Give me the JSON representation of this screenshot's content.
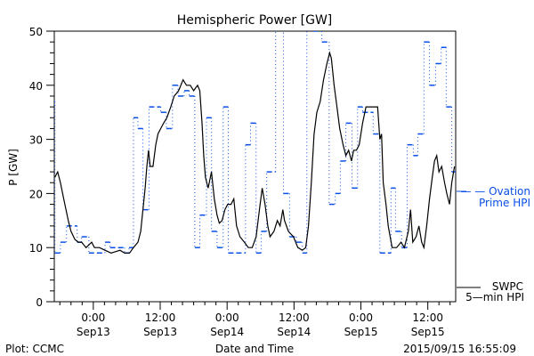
{
  "chart_data": {
    "type": "line",
    "title": "Hemispheric Power [GW]",
    "xlabel": "Date and Time",
    "ylabel": "P [GW]",
    "x_units": "hours since 2015-09-13 00:00 UT",
    "xlim": [
      -7,
      65
    ],
    "ylim": [
      0,
      50
    ],
    "yticks": [
      0,
      10,
      20,
      30,
      40,
      50
    ],
    "xticks": [
      {
        "h": 0,
        "time": "0:00",
        "date": "Sep13"
      },
      {
        "h": 12,
        "time": "12:00",
        "date": "Sep13"
      },
      {
        "h": 24,
        "time": "0:00",
        "date": "Sep14"
      },
      {
        "h": 36,
        "time": "12:00",
        "date": "Sep14"
      },
      {
        "h": 48,
        "time": "0:00",
        "date": "Sep15"
      },
      {
        "h": 60,
        "time": "12:00",
        "date": "Sep15"
      }
    ],
    "grid": false,
    "legend_placement": "right-outside",
    "series": [
      {
        "name": "SWPC 5-min HPI",
        "label_lines": [
          "SWPC",
          "5—min HPI"
        ],
        "color": "#000000",
        "style": "solid",
        "points": [
          [
            -6.9,
            23
          ],
          [
            -6.4,
            24
          ],
          [
            -5.9,
            22
          ],
          [
            -5.3,
            19
          ],
          [
            -4.5,
            15
          ],
          [
            -4.0,
            13
          ],
          [
            -3.3,
            11.5
          ],
          [
            -2.7,
            11
          ],
          [
            -2.1,
            11
          ],
          [
            -1.3,
            10
          ],
          [
            -0.3,
            11
          ],
          [
            0.2,
            10
          ],
          [
            1.1,
            10
          ],
          [
            2.1,
            9.5
          ],
          [
            3.2,
            9
          ],
          [
            4.8,
            9.5
          ],
          [
            5.6,
            9
          ],
          [
            6.5,
            9
          ],
          [
            7.2,
            10
          ],
          [
            8.0,
            11
          ],
          [
            8.5,
            13
          ],
          [
            8.9,
            17
          ],
          [
            9.3,
            21
          ],
          [
            9.6,
            25
          ],
          [
            9.9,
            28
          ],
          [
            10.2,
            25
          ],
          [
            10.7,
            25
          ],
          [
            11.2,
            29
          ],
          [
            11.6,
            31
          ],
          [
            12.1,
            32
          ],
          [
            12.6,
            33
          ],
          [
            13.2,
            34
          ],
          [
            13.9,
            36
          ],
          [
            14.5,
            38
          ],
          [
            15.3,
            39
          ],
          [
            16.1,
            41
          ],
          [
            16.7,
            40
          ],
          [
            17.4,
            40
          ],
          [
            18.0,
            39
          ],
          [
            18.7,
            40
          ],
          [
            19.1,
            39
          ],
          [
            19.5,
            33
          ],
          [
            19.8,
            27
          ],
          [
            20.1,
            23
          ],
          [
            20.6,
            21
          ],
          [
            21.2,
            24
          ],
          [
            21.7,
            19
          ],
          [
            22.2,
            16
          ],
          [
            22.6,
            14.5
          ],
          [
            23.1,
            15
          ],
          [
            23.6,
            17
          ],
          [
            24.1,
            18
          ],
          [
            24.7,
            18
          ],
          [
            25.2,
            19
          ],
          [
            25.7,
            14
          ],
          [
            26.3,
            12
          ],
          [
            27.1,
            11
          ],
          [
            27.8,
            10
          ],
          [
            28.5,
            10
          ],
          [
            29.2,
            12
          ],
          [
            29.8,
            17
          ],
          [
            30.3,
            21
          ],
          [
            30.8,
            18
          ],
          [
            31.3,
            14
          ],
          [
            31.7,
            12
          ],
          [
            32.4,
            13
          ],
          [
            33.0,
            15
          ],
          [
            33.5,
            14
          ],
          [
            34.0,
            17
          ],
          [
            34.3,
            15
          ],
          [
            35.0,
            13
          ],
          [
            35.9,
            12
          ],
          [
            36.7,
            10
          ],
          [
            37.5,
            9.5
          ],
          [
            38.1,
            10
          ],
          [
            38.6,
            14
          ],
          [
            39.1,
            22
          ],
          [
            39.6,
            31
          ],
          [
            40.1,
            35
          ],
          [
            40.7,
            37
          ],
          [
            41.3,
            41
          ],
          [
            41.9,
            44
          ],
          [
            42.4,
            46
          ],
          [
            42.7,
            45
          ],
          [
            43.2,
            40
          ],
          [
            43.7,
            36
          ],
          [
            44.2,
            32
          ],
          [
            44.8,
            29
          ],
          [
            45.3,
            27
          ],
          [
            45.8,
            28
          ],
          [
            46.3,
            26
          ],
          [
            46.7,
            28
          ],
          [
            47.2,
            28
          ],
          [
            47.7,
            29
          ],
          [
            48.3,
            33
          ],
          [
            48.9,
            36
          ],
          [
            51.0,
            36
          ],
          [
            51.4,
            30
          ],
          [
            51.7,
            31
          ],
          [
            52.0,
            22
          ],
          [
            52.5,
            18
          ],
          [
            52.9,
            14
          ],
          [
            53.6,
            10
          ],
          [
            54.4,
            10
          ],
          [
            55.2,
            11
          ],
          [
            55.8,
            10
          ],
          [
            56.5,
            13
          ],
          [
            56.9,
            17
          ],
          [
            57.3,
            11
          ],
          [
            57.9,
            12
          ],
          [
            58.4,
            14
          ],
          [
            58.9,
            11
          ],
          [
            59.3,
            10
          ],
          [
            59.8,
            14
          ],
          [
            60.3,
            19
          ],
          [
            60.8,
            23
          ],
          [
            61.2,
            26
          ],
          [
            61.6,
            27
          ],
          [
            62.0,
            24
          ],
          [
            62.5,
            25
          ],
          [
            63.0,
            22
          ],
          [
            63.4,
            20
          ],
          [
            63.9,
            18
          ],
          [
            64.3,
            22
          ],
          [
            64.8,
            25
          ]
        ]
      },
      {
        "name": "Ovation Prime HPI",
        "label_lines": [
          "— — Ovation",
          "Prime HPI"
        ],
        "color": "#0a4fe8",
        "style": "step-dashed",
        "steps": [
          [
            -7.0,
            37
          ],
          [
            -6.9,
            9
          ],
          [
            -5.9,
            11
          ],
          [
            -4.8,
            14
          ],
          [
            -2.9,
            11
          ],
          [
            -2.1,
            12
          ],
          [
            -0.8,
            9
          ],
          [
            2.1,
            11
          ],
          [
            3.0,
            10
          ],
          [
            5.6,
            9
          ],
          [
            6.4,
            10
          ],
          [
            7.2,
            34
          ],
          [
            8.0,
            32
          ],
          [
            8.9,
            17
          ],
          [
            10.0,
            36
          ],
          [
            12.1,
            35
          ],
          [
            13.1,
            32
          ],
          [
            14.2,
            40
          ],
          [
            15.2,
            38
          ],
          [
            16.3,
            39
          ],
          [
            17.2,
            38
          ],
          [
            18.2,
            10
          ],
          [
            19.1,
            16
          ],
          [
            20.3,
            34
          ],
          [
            21.2,
            13
          ],
          [
            22.2,
            10
          ],
          [
            23.3,
            36
          ],
          [
            24.2,
            9
          ],
          [
            27.3,
            29
          ],
          [
            28.2,
            33
          ],
          [
            29.2,
            9
          ],
          [
            30.1,
            13
          ],
          [
            31.1,
            24
          ],
          [
            32.7,
            55
          ],
          [
            34.1,
            20
          ],
          [
            35.2,
            12
          ],
          [
            36.4,
            11
          ],
          [
            37.5,
            9
          ],
          [
            38.3,
            55
          ],
          [
            39.4,
            50
          ],
          [
            41.0,
            48
          ],
          [
            42.3,
            18
          ],
          [
            43.4,
            20
          ],
          [
            44.3,
            26
          ],
          [
            45.3,
            33
          ],
          [
            46.4,
            21
          ],
          [
            47.4,
            36
          ],
          [
            48.3,
            35
          ],
          [
            50.2,
            31
          ],
          [
            51.4,
            9
          ],
          [
            53.4,
            21
          ],
          [
            54.2,
            13
          ],
          [
            55.3,
            10
          ],
          [
            56.3,
            29
          ],
          [
            57.4,
            27
          ],
          [
            58.2,
            31
          ],
          [
            59.3,
            48
          ],
          [
            60.3,
            40
          ],
          [
            61.4,
            44
          ],
          [
            62.4,
            47
          ],
          [
            63.3,
            36
          ],
          [
            64.3,
            24
          ]
        ]
      }
    ]
  },
  "footer": {
    "left": "Plot: CCMC",
    "right": "2015/09/15 16:55:09"
  }
}
